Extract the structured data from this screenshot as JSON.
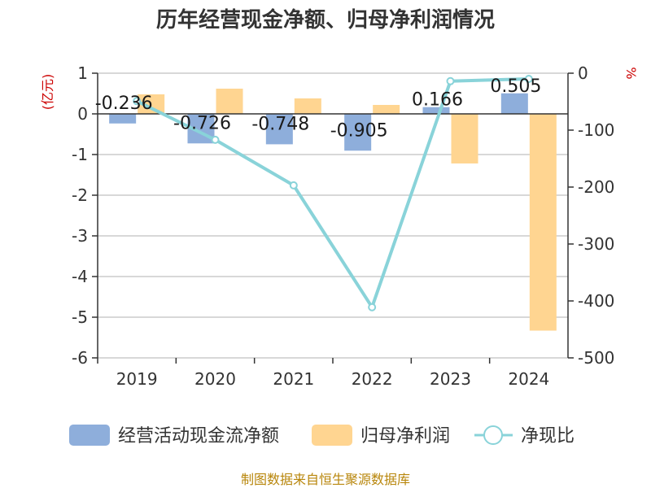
{
  "chart_data": {
    "type": "bar+line",
    "title": "历年经营现金净额、归母净利润情况",
    "categories": [
      "2019",
      "2020",
      "2021",
      "2022",
      "2023",
      "2024"
    ],
    "left_axis": {
      "unit": "(亿元)",
      "ylim": [
        -6,
        1
      ],
      "ticks": [
        1,
        0,
        -1,
        -2,
        -3,
        -4,
        -5,
        -6
      ]
    },
    "right_axis": {
      "unit": "%",
      "ylim": [
        -500,
        0
      ],
      "ticks": [
        0,
        -100,
        -200,
        -300,
        -400,
        -500
      ]
    },
    "series": [
      {
        "name": "经营活动现金流净额",
        "type": "bar",
        "axis": "left",
        "color": "#8eaedb",
        "values": [
          -0.236,
          -0.726,
          -0.748,
          -0.905,
          0.166,
          0.505
        ],
        "labels": [
          "-0.236",
          "-0.726",
          "-0.748",
          "-0.905",
          "0.166",
          "0.505"
        ]
      },
      {
        "name": "归母净利润",
        "type": "bar",
        "axis": "left",
        "color": "#ffd591",
        "values": [
          0.48,
          0.62,
          0.38,
          0.22,
          -1.22,
          -5.33
        ]
      },
      {
        "name": "净现比",
        "type": "line",
        "axis": "right",
        "color": "#89d3d9",
        "values": [
          -49,
          -117,
          -197,
          -411,
          -14,
          -10
        ]
      }
    ]
  },
  "footer": {
    "source": "制图数据来自恒生聚源数据库"
  }
}
